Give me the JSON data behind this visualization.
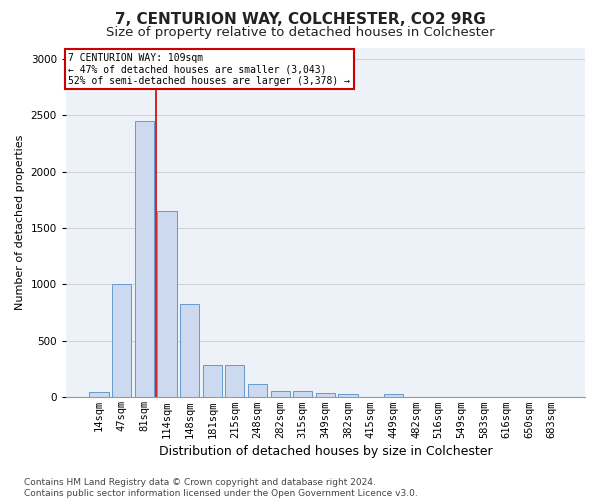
{
  "title1": "7, CENTURION WAY, COLCHESTER, CO2 9RG",
  "title2": "Size of property relative to detached houses in Colchester",
  "xlabel": "Distribution of detached houses by size in Colchester",
  "ylabel": "Number of detached properties",
  "categories": [
    "14sqm",
    "47sqm",
    "81sqm",
    "114sqm",
    "148sqm",
    "181sqm",
    "215sqm",
    "248sqm",
    "282sqm",
    "315sqm",
    "349sqm",
    "382sqm",
    "415sqm",
    "449sqm",
    "482sqm",
    "516sqm",
    "549sqm",
    "583sqm",
    "616sqm",
    "650sqm",
    "683sqm"
  ],
  "values": [
    50,
    1000,
    2450,
    1650,
    830,
    285,
    285,
    120,
    55,
    55,
    40,
    25,
    0,
    30,
    0,
    0,
    0,
    0,
    0,
    0,
    0
  ],
  "bar_color": "#ccd9ee",
  "bar_edge_color": "#6699cc",
  "vline_color": "#cc0000",
  "annotation_text": "7 CENTURION WAY: 109sqm\n← 47% of detached houses are smaller (3,043)\n52% of semi-detached houses are larger (3,378) →",
  "annotation_box_color": "#cc0000",
  "ylim": [
    0,
    3100
  ],
  "yticks": [
    0,
    500,
    1000,
    1500,
    2000,
    2500,
    3000
  ],
  "grid_color": "#cccccc",
  "bg_color": "#edf1f8",
  "footer": "Contains HM Land Registry data © Crown copyright and database right 2024.\nContains public sector information licensed under the Open Government Licence v3.0.",
  "title1_fontsize": 11,
  "title2_fontsize": 9.5,
  "xlabel_fontsize": 9,
  "ylabel_fontsize": 8,
  "tick_fontsize": 7.5,
  "footer_fontsize": 6.5
}
